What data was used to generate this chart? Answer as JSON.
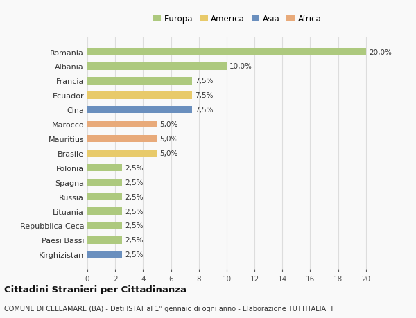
{
  "categories": [
    "Romania",
    "Albania",
    "Francia",
    "Ecuador",
    "Cina",
    "Marocco",
    "Mauritius",
    "Brasile",
    "Polonia",
    "Spagna",
    "Russia",
    "Lituania",
    "Repubblica Ceca",
    "Paesi Bassi",
    "Kirghizistan"
  ],
  "values": [
    20.0,
    10.0,
    7.5,
    7.5,
    7.5,
    5.0,
    5.0,
    5.0,
    2.5,
    2.5,
    2.5,
    2.5,
    2.5,
    2.5,
    2.5
  ],
  "continents": [
    "Europa",
    "Europa",
    "Europa",
    "America",
    "Asia",
    "Africa",
    "Africa",
    "America",
    "Europa",
    "Europa",
    "Europa",
    "Europa",
    "Europa",
    "Europa",
    "Asia"
  ],
  "colors": {
    "Europa": "#adc97e",
    "America": "#e8ca6a",
    "Asia": "#6a8fbe",
    "Africa": "#e8aa7a"
  },
  "legend_order": [
    "Europa",
    "America",
    "Asia",
    "Africa"
  ],
  "labels": [
    "20,0%",
    "10,0%",
    "7,5%",
    "7,5%",
    "7,5%",
    "5,0%",
    "5,0%",
    "5,0%",
    "2,5%",
    "2,5%",
    "2,5%",
    "2,5%",
    "2,5%",
    "2,5%",
    "2,5%"
  ],
  "title": "Cittadini Stranieri per Cittadinanza",
  "subtitle": "COMUNE DI CELLAMARE (BA) - Dati ISTAT al 1° gennaio di ogni anno - Elaborazione TUTTITALIA.IT",
  "xlim": [
    0,
    21.5
  ],
  "xticks": [
    0,
    2,
    4,
    6,
    8,
    10,
    12,
    14,
    16,
    18,
    20
  ],
  "bg_color": "#f9f9f9",
  "grid_color": "#dddddd",
  "bar_height": 0.5
}
